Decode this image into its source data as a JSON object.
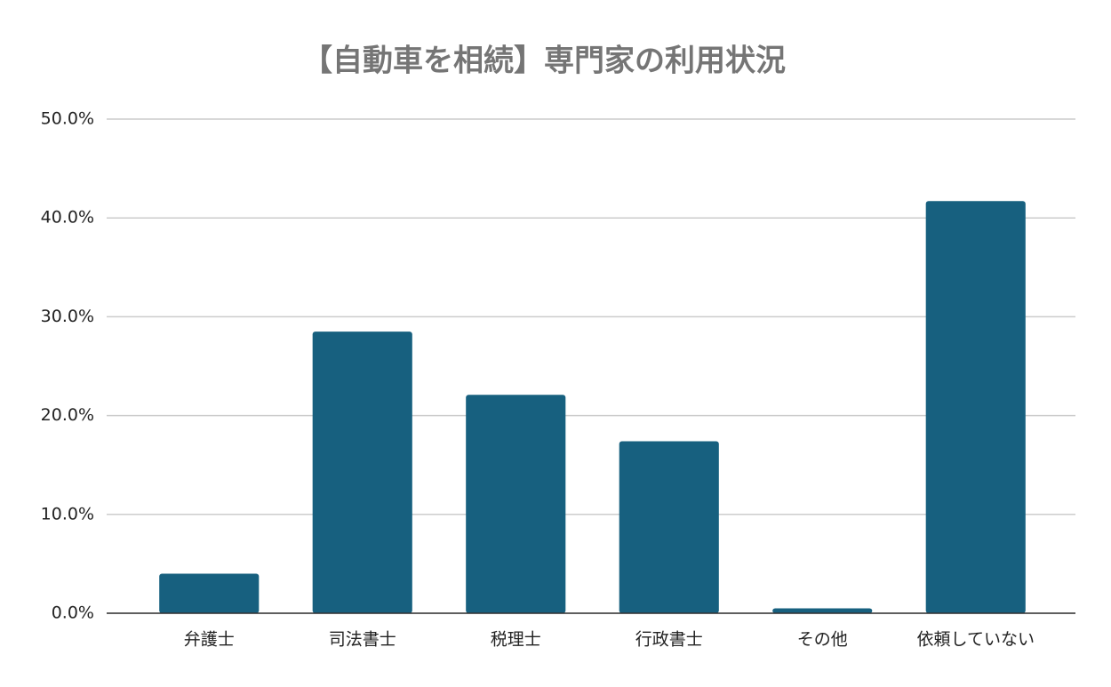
{
  "chart_data": {
    "type": "bar",
    "title": "【自動車を相続】専門家の利用状況",
    "categories": [
      "弁護士",
      "司法書士",
      "税理士",
      "行政書士",
      "その他",
      "依頼していない"
    ],
    "values": [
      4.0,
      28.5,
      22.1,
      17.4,
      0.5,
      41.7
    ],
    "color": "#17607f",
    "ylim": [
      0,
      50
    ],
    "yticks": [
      {
        "value": 0,
        "label": "0.0%"
      },
      {
        "value": 10,
        "label": "10.0%"
      },
      {
        "value": 20,
        "label": "20.0%"
      },
      {
        "value": 30,
        "label": "30.0%"
      },
      {
        "value": 40,
        "label": "40.0%"
      },
      {
        "value": 50,
        "label": "50.0%"
      }
    ],
    "grid": true
  }
}
